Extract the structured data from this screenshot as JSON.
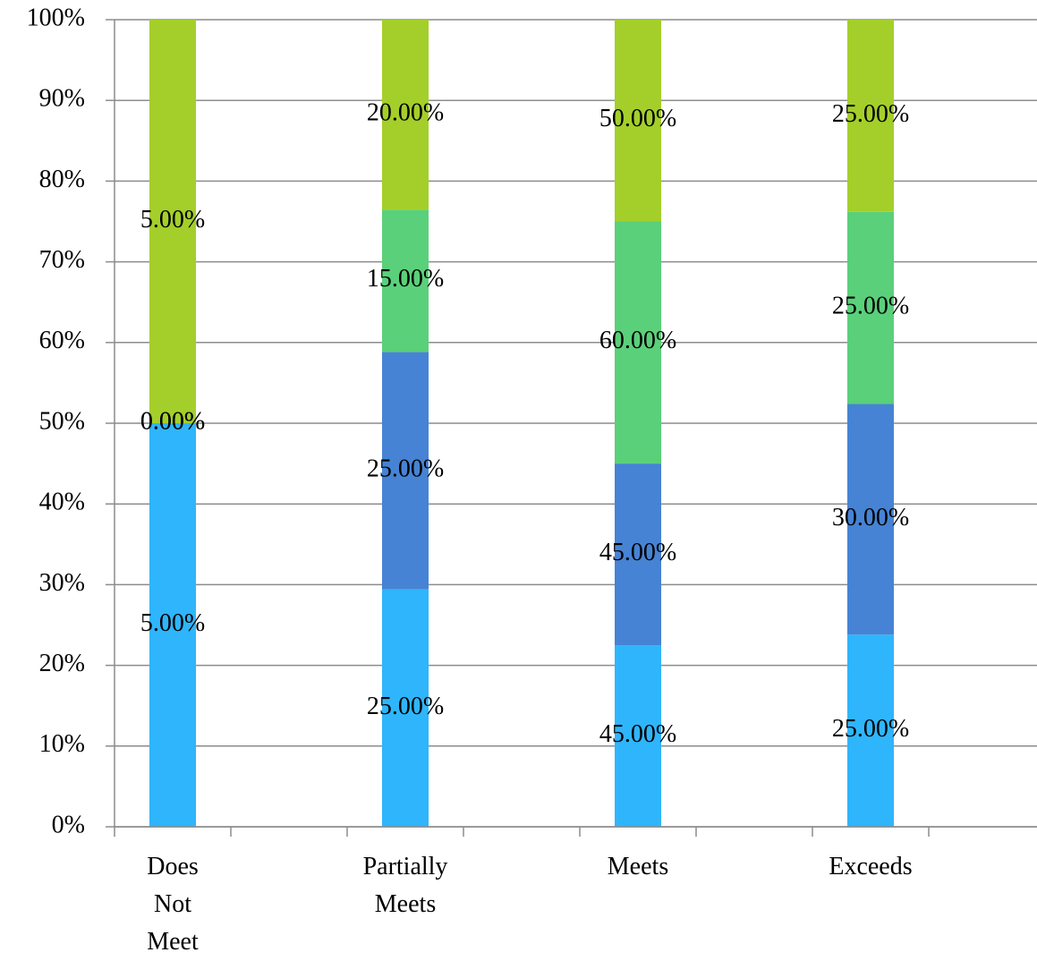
{
  "chart_data": {
    "type": "bar",
    "stacking": "percent",
    "categories": [
      "Does Not Meet",
      "Partially Meets",
      "Meets",
      "Exceeds"
    ],
    "series": [
      {
        "color": "#2fb5fb",
        "values": [
          5,
          25,
          45,
          25
        ],
        "value_labels": [
          "5.00%",
          "25.00%",
          "45.00%",
          "25.00%"
        ]
      },
      {
        "color": "#4683d4",
        "values": [
          0,
          25,
          45,
          30
        ],
        "value_labels": [
          "0.00%",
          "25.00%",
          "45.00%",
          "30.00%"
        ]
      },
      {
        "color": "#5ad07a",
        "values": [
          0,
          15,
          60,
          25
        ],
        "value_labels": [
          "0.00%",
          "15.00%",
          "60.00%",
          "25.00%"
        ]
      },
      {
        "color": "#a4cf2a",
        "values": [
          5,
          20,
          50,
          25
        ],
        "value_labels": [
          "5.00%",
          "20.00%",
          "50.00%",
          "25.00%"
        ]
      }
    ],
    "ylim": [
      0,
      100
    ],
    "yticks": [
      {
        "value": 0,
        "label": "0%"
      },
      {
        "value": 10,
        "label": "10%"
      },
      {
        "value": 20,
        "label": "20%"
      },
      {
        "value": 30,
        "label": "30%"
      },
      {
        "value": 40,
        "label": "40%"
      },
      {
        "value": 50,
        "label": "50%"
      },
      {
        "value": 60,
        "label": "60%"
      },
      {
        "value": 70,
        "label": "70%"
      },
      {
        "value": 80,
        "label": "80%"
      },
      {
        "value": 90,
        "label": "90%"
      },
      {
        "value": 100,
        "label": "100%"
      }
    ],
    "grid": true
  }
}
